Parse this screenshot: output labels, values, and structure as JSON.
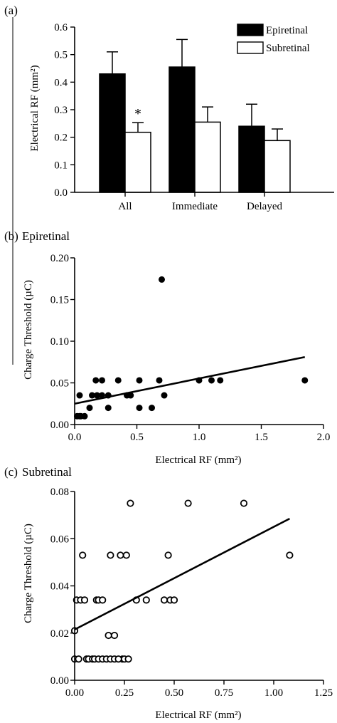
{
  "chart_data": [
    {
      "panel": "(a)",
      "type": "bar",
      "categories": [
        "All",
        "Immediate",
        "Delayed"
      ],
      "series": [
        {
          "name": "Epiretinal",
          "color": "#000000",
          "values": [
            0.43,
            0.455,
            0.24
          ],
          "errors": [
            0.08,
            0.1,
            0.08
          ]
        },
        {
          "name": "Subretinal",
          "color": "#ffffff",
          "values": [
            0.218,
            0.255,
            0.188
          ],
          "errors": [
            0.035,
            0.055,
            0.042
          ]
        }
      ],
      "annotations": [
        {
          "text": "*",
          "category": "All",
          "series": "Subretinal"
        }
      ],
      "ylabel": "Electrical RF (mm²)",
      "ylim": [
        0,
        0.6
      ],
      "yticks": [
        "0.0",
        "0.1",
        "0.2",
        "0.3",
        "0.4",
        "0.5",
        "0.6"
      ],
      "legend": "top-right"
    },
    {
      "panel": "(b)",
      "title": "Epiretinal",
      "type": "scatter",
      "marker": "filled",
      "x": [
        0.02,
        0.04,
        0.05,
        0.08,
        0.04,
        0.12,
        0.14,
        0.18,
        0.22,
        0.27,
        0.17,
        0.22,
        0.35,
        0.42,
        0.45,
        0.52,
        0.52,
        0.68,
        0.72,
        0.7,
        0.62,
        0.27,
        1.0,
        1.1,
        1.17,
        1.85
      ],
      "y": [
        0.01,
        0.01,
        0.01,
        0.01,
        0.035,
        0.02,
        0.035,
        0.035,
        0.035,
        0.035,
        0.053,
        0.053,
        0.053,
        0.035,
        0.035,
        0.02,
        0.053,
        0.053,
        0.035,
        0.174,
        0.02,
        0.02,
        0.053,
        0.053,
        0.053,
        0.053
      ],
      "fit_line": {
        "x": [
          0.0,
          1.85
        ],
        "y": [
          0.025,
          0.081
        ]
      },
      "xlabel": "Electrical  RF (mm²)",
      "ylabel": "Charge Threshold  (µC)",
      "xlim": [
        0,
        2.0
      ],
      "ylim": [
        0,
        0.2
      ],
      "xticks": [
        "0.0",
        "0.5",
        "1.0",
        "1.5",
        "2.0"
      ],
      "yticks": [
        "0.00",
        "0.05",
        "0.10",
        "0.15",
        "0.20"
      ]
    },
    {
      "panel": "(c)",
      "title": "Subretinal",
      "type": "scatter",
      "marker": "open",
      "x": [
        0.0,
        0.0,
        0.01,
        0.02,
        0.03,
        0.05,
        0.04,
        0.06,
        0.07,
        0.09,
        0.1,
        0.12,
        0.14,
        0.11,
        0.12,
        0.14,
        0.16,
        0.18,
        0.2,
        0.17,
        0.18,
        0.23,
        0.2,
        0.24,
        0.25,
        0.22,
        0.27,
        0.28,
        0.26,
        0.31,
        0.36,
        0.45,
        0.48,
        0.5,
        0.47,
        0.57,
        0.85,
        1.08
      ],
      "y": [
        0.009,
        0.021,
        0.034,
        0.009,
        0.034,
        0.034,
        0.053,
        0.009,
        0.009,
        0.009,
        0.009,
        0.009,
        0.009,
        0.034,
        0.034,
        0.034,
        0.009,
        0.009,
        0.009,
        0.019,
        0.053,
        0.053,
        0.019,
        0.009,
        0.009,
        0.009,
        0.009,
        0.075,
        0.053,
        0.034,
        0.034,
        0.034,
        0.034,
        0.034,
        0.053,
        0.075,
        0.075,
        0.053
      ],
      "fit_line": {
        "x": [
          0.0,
          1.08
        ],
        "y": [
          0.0215,
          0.0685
        ]
      },
      "xlabel": "Electrical RF (mm²)",
      "ylabel": "Charge  Threshold (µC)",
      "xlim": [
        0,
        1.25
      ],
      "ylim": [
        0,
        0.08
      ],
      "xticks": [
        "0.00",
        "0.25",
        "0.50",
        "0.75",
        "1.00",
        "1.25"
      ],
      "yticks": [
        "0.00",
        "0.02",
        "0.04",
        "0.06",
        "0.08"
      ]
    }
  ]
}
